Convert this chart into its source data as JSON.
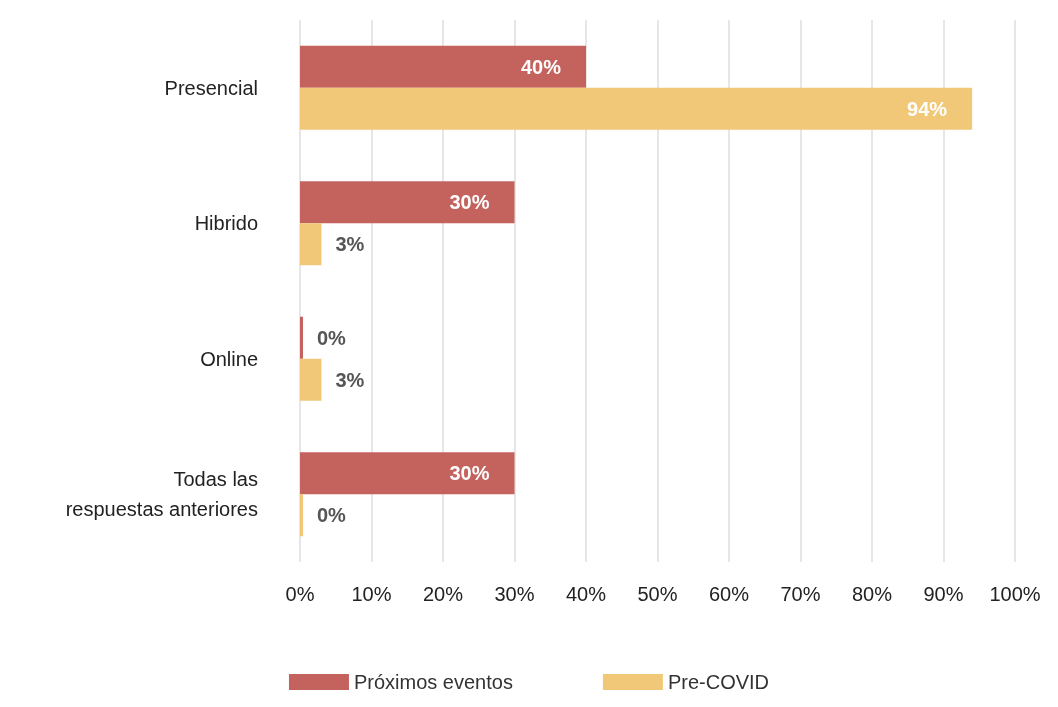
{
  "chart_data": {
    "type": "bar",
    "orientation": "horizontal",
    "categories": [
      "Presencial",
      "Hibrido",
      "Online",
      "Todas las\nrespuestas anteriores"
    ],
    "series": [
      {
        "name": "Próximos eventos",
        "color": "#c4625d",
        "values": [
          40,
          30,
          0,
          30
        ],
        "value_labels": [
          "40%",
          "30%",
          "0%",
          "30%"
        ]
      },
      {
        "name": "Pre-COVID",
        "color": "#f1c878",
        "values": [
          94,
          3,
          3,
          0
        ],
        "value_labels": [
          "94%",
          "3%",
          "3%",
          "0%"
        ]
      }
    ],
    "xlim": [
      0,
      100
    ],
    "xticks": [
      {
        "value": 0,
        "label": "0%"
      },
      {
        "value": 10,
        "label": "10%"
      },
      {
        "value": 20,
        "label": "20%"
      },
      {
        "value": 30,
        "label": "30%"
      },
      {
        "value": 40,
        "label": "40%"
      },
      {
        "value": 50,
        "label": "50%"
      },
      {
        "value": 60,
        "label": "60%"
      },
      {
        "value": 70,
        "label": "70%"
      },
      {
        "value": 80,
        "label": "80%"
      },
      {
        "value": 90,
        "label": "90%"
      },
      {
        "value": 100,
        "label": "100%"
      }
    ],
    "grid": "x",
    "legend": "bottom"
  }
}
